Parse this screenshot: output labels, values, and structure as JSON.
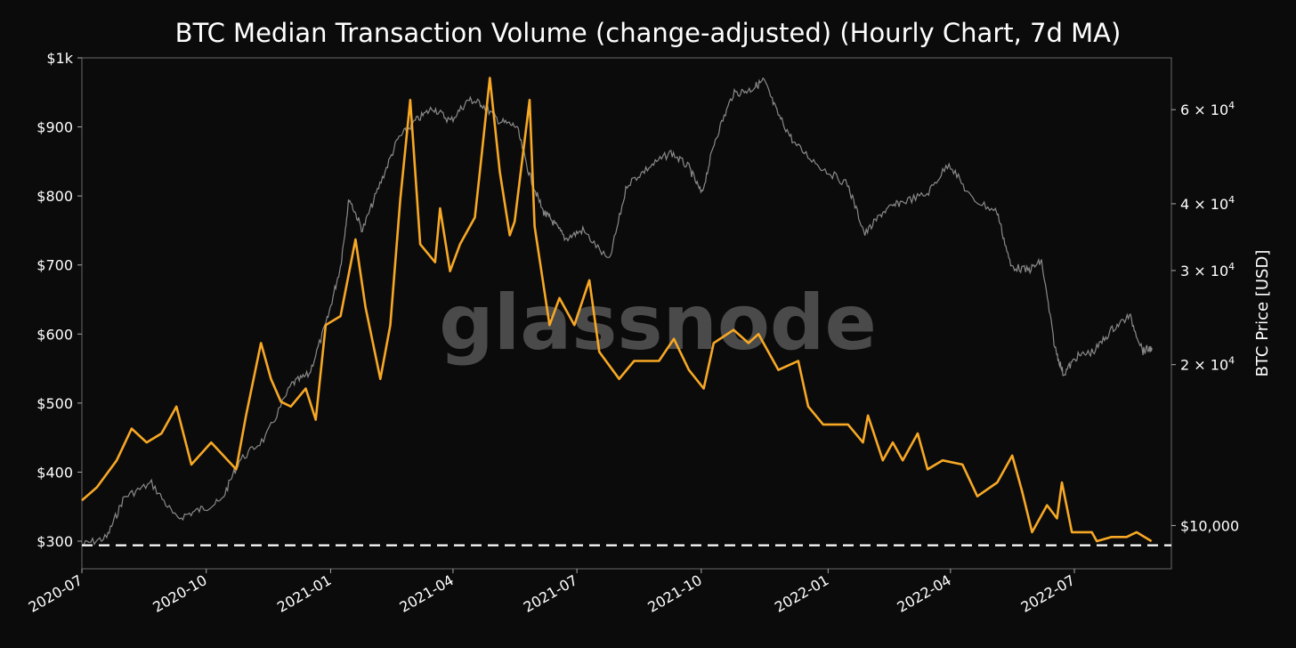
{
  "chart_data": {
    "type": "line",
    "title": "BTC Median Transaction Volume (change-adjusted) (Hourly Chart, 7d MA)",
    "watermark": "glassnode",
    "xlabel": "",
    "x_unit": "decimal year",
    "xlim": [
      2020.5,
      2022.69
    ],
    "x_ticks": [
      {
        "value": 2020.5,
        "label": "2020-07"
      },
      {
        "value": 2020.75,
        "label": "2020-10"
      },
      {
        "value": 2021.0,
        "label": "2021-01"
      },
      {
        "value": 2021.246,
        "label": "2021-04"
      },
      {
        "value": 2021.495,
        "label": "2021-07"
      },
      {
        "value": 2021.745,
        "label": "2021-10"
      },
      {
        "value": 2022.0,
        "label": "2022-01"
      },
      {
        "value": 2022.246,
        "label": "2022-04"
      },
      {
        "value": 2022.495,
        "label": "2022-07"
      }
    ],
    "left_axis": {
      "ylabel": "",
      "ylim": [
        260,
        1000
      ],
      "scale": "linear",
      "ticks": [
        {
          "value": 300,
          "label": "$300"
        },
        {
          "value": 400,
          "label": "$400"
        },
        {
          "value": 500,
          "label": "$500"
        },
        {
          "value": 600,
          "label": "$600"
        },
        {
          "value": 700,
          "label": "$700"
        },
        {
          "value": 800,
          "label": "$800"
        },
        {
          "value": 900,
          "label": "$900"
        },
        {
          "value": 1000,
          "label": "$1k"
        }
      ]
    },
    "right_axis": {
      "ylabel": "BTC Price [USD]",
      "scale": "log",
      "ylim": [
        8300,
        75000
      ],
      "ticks": [
        {
          "value": 10000,
          "label": "$10,000"
        },
        {
          "value": 20000,
          "label": "2 × 10",
          "exp": "4"
        },
        {
          "value": 30000,
          "label": "3 × 10",
          "exp": "4"
        },
        {
          "value": 40000,
          "label": "4 × 10",
          "exp": "4"
        },
        {
          "value": 60000,
          "label": "6 × 10",
          "exp": "4"
        }
      ]
    },
    "reference_line": {
      "axis": "left",
      "value": 294,
      "style": "dashed",
      "color": "#ffffff"
    },
    "series": [
      {
        "name": "Median Transaction Volume (7d MA)",
        "axis": "left",
        "color": "#f7a825",
        "x": [
          2020.5,
          2020.53,
          2020.57,
          2020.6,
          2020.63,
          2020.66,
          2020.69,
          2020.72,
          2020.76,
          2020.81,
          2020.83,
          2020.86,
          2020.88,
          2020.9,
          2020.92,
          2020.95,
          2020.97,
          2020.99,
          2021.02,
          2021.05,
          2021.07,
          2021.1,
          2021.12,
          2021.14,
          2021.16,
          2021.18,
          2021.21,
          2021.22,
          2021.24,
          2021.26,
          2021.29,
          2021.3,
          2021.32,
          2021.34,
          2021.36,
          2021.37,
          2021.4,
          2021.41,
          2021.44,
          2021.46,
          2021.49,
          2021.52,
          2021.54,
          2021.58,
          2021.61,
          2021.66,
          2021.69,
          2021.72,
          2021.75,
          2021.77,
          2021.81,
          2021.84,
          2021.86,
          2021.9,
          2021.94,
          2021.96,
          2021.99,
          2022.04,
          2022.07,
          2022.08,
          2022.11,
          2022.13,
          2022.15,
          2022.18,
          2022.2,
          2022.23,
          2022.27,
          2022.3,
          2022.34,
          2022.37,
          2022.39,
          2022.41,
          2022.44,
          2022.46,
          2022.47,
          2022.49,
          2022.53,
          2022.54,
          2022.57,
          2022.6,
          2022.62,
          2022.65
        ],
        "y": [
          359,
          378,
          417,
          463,
          443,
          456,
          495,
          411,
          443,
          404,
          482,
          587,
          535,
          502,
          495,
          521,
          476,
          613,
          626,
          737,
          639,
          535,
          613,
          795,
          939,
          730,
          704,
          782,
          691,
          730,
          769,
          835,
          971,
          835,
          743,
          763,
          939,
          756,
          613,
          652,
          613,
          678,
          574,
          535,
          561,
          561,
          593,
          548,
          521,
          587,
          606,
          587,
          600,
          548,
          561,
          495,
          469,
          469,
          443,
          482,
          417,
          443,
          417,
          456,
          404,
          417,
          411,
          365,
          385,
          424,
          372,
          313,
          352,
          333,
          385,
          313,
          313,
          300,
          306,
          306,
          313,
          300
        ]
      },
      {
        "name": "BTC Price",
        "axis": "right",
        "color": "#8a8a8a",
        "x": [
          2020.5,
          2020.55,
          2020.585,
          2020.64,
          2020.69,
          2020.736,
          2020.78,
          2020.816,
          2020.869,
          2020.922,
          2020.957,
          2020.993,
          2021.02,
          2021.037,
          2021.064,
          2021.099,
          2021.135,
          2021.17,
          2021.206,
          2021.241,
          2021.277,
          2021.303,
          2021.339,
          2021.374,
          2021.4,
          2021.427,
          2021.445,
          2021.472,
          2021.507,
          2021.56,
          2021.596,
          2021.64,
          2021.684,
          2021.72,
          2021.746,
          2021.773,
          2021.809,
          2021.844,
          2021.871,
          2021.897,
          2021.933,
          2021.986,
          2022.039,
          2022.074,
          2022.11,
          2022.145,
          2022.199,
          2022.243,
          2022.287,
          2022.34,
          2022.367,
          2022.402,
          2022.429,
          2022.456,
          2022.473,
          2022.5,
          2022.535,
          2022.571,
          2022.606,
          2022.633,
          2022.651
        ],
        "y": [
          9200,
          9500,
          11300,
          12000,
          10300,
          10700,
          11100,
          13200,
          14600,
          18400,
          19200,
          24200,
          30600,
          41000,
          35700,
          43500,
          52800,
          57100,
          60500,
          57100,
          62600,
          61600,
          57100,
          55800,
          45200,
          38700,
          37200,
          34400,
          35700,
          31200,
          43500,
          46800,
          49900,
          46800,
          41700,
          52800,
          64200,
          65400,
          68100,
          59400,
          51700,
          46800,
          43500,
          35100,
          38600,
          40200,
          41700,
          47700,
          41000,
          38600,
          30600,
          30000,
          31200,
          21500,
          19200,
          20700,
          21200,
          23300,
          24700,
          21200,
          21500
        ]
      }
    ]
  }
}
